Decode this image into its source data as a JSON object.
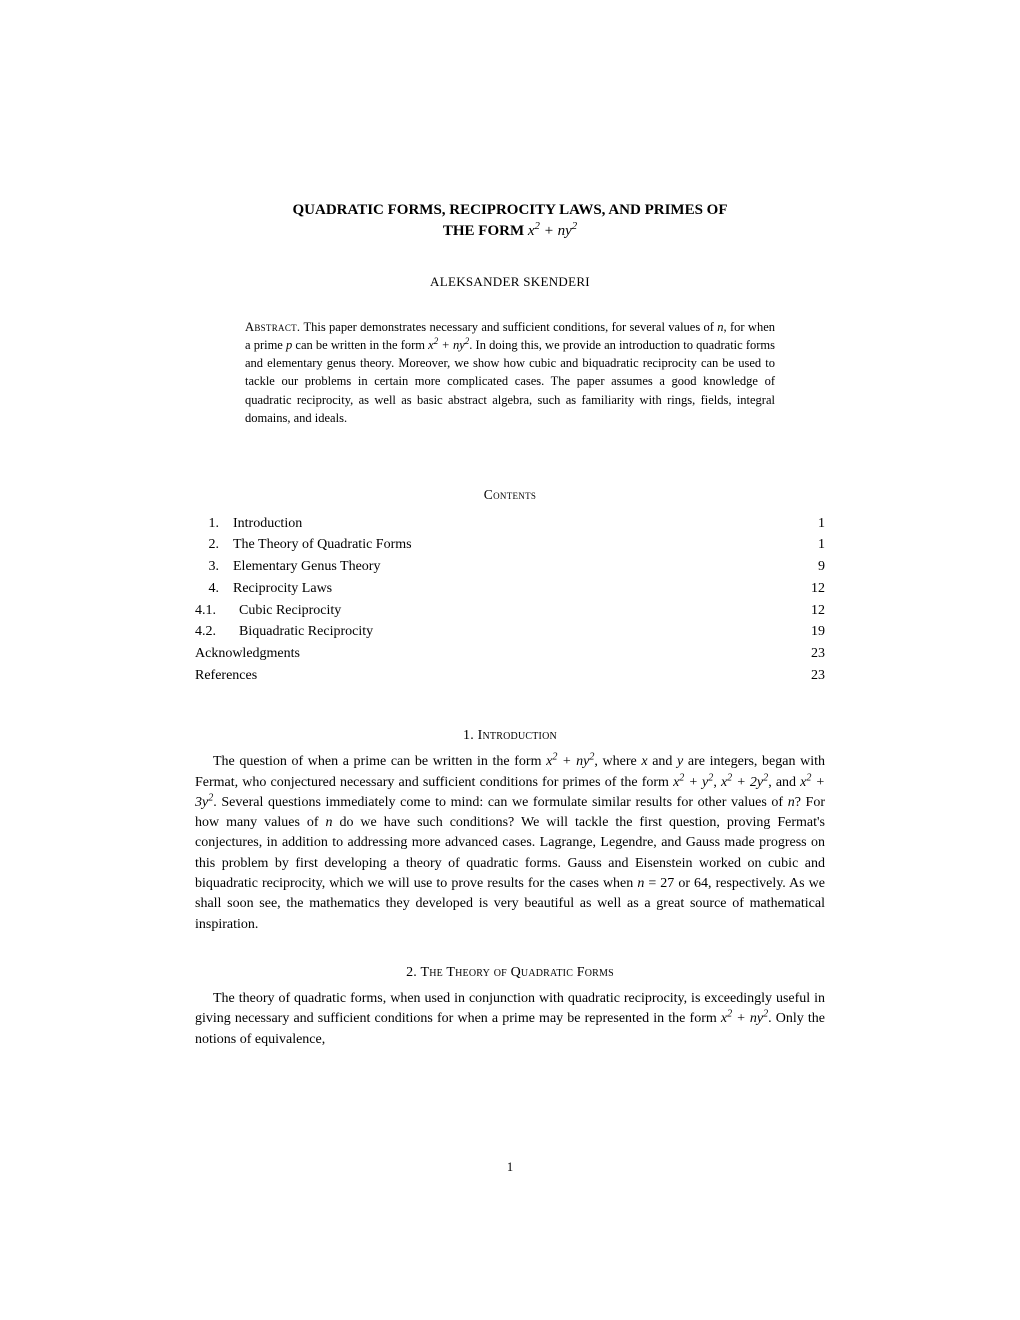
{
  "title_line1": "QUADRATIC FORMS, RECIPROCITY LAWS, AND PRIMES OF",
  "title_line2_prefix": "THE FORM ",
  "author": "ALEKSANDER SKENDERI",
  "abstract_label": "Abstract.",
  "abstract_body_1": " This paper demonstrates necessary and sufficient conditions, for several values of ",
  "abstract_body_2": ", for when a prime ",
  "abstract_body_3": " can be written in the form ",
  "abstract_body_4": ". In doing this, we provide an introduction to quadratic forms and elementary genus theory. Moreover, we show how cubic and biquadratic reciprocity can be used to tackle our problems in certain more complicated cases. The paper assumes a good knowledge of quadratic reciprocity, as well as basic abstract algebra, such as familiarity with rings, fields, integral domains, and ideals.",
  "contents_heading": "Contents",
  "toc": [
    {
      "num": "1.",
      "title": "Introduction",
      "page": "1"
    },
    {
      "num": "2.",
      "title": "The Theory of Quadratic Forms",
      "page": "1"
    },
    {
      "num": "3.",
      "title": "Elementary Genus Theory",
      "page": "9"
    },
    {
      "num": "4.",
      "title": "Reciprocity Laws",
      "page": "12"
    },
    {
      "num": "4.1.",
      "title": "Cubic Reciprocity",
      "page": "12",
      "sub": true
    },
    {
      "num": "4.2.",
      "title": "Biquadratic Reciprocity",
      "page": "19",
      "sub": true
    },
    {
      "num": "",
      "title": "Acknowledgments",
      "page": "23",
      "noprefix": true
    },
    {
      "num": "",
      "title": "References",
      "page": "23",
      "noprefix": true
    }
  ],
  "section1_heading": "1. Introduction",
  "intro_1": "The question of when a prime can be written in the form ",
  "intro_2": ", where ",
  "intro_3": " and ",
  "intro_4": " are integers, began with Fermat, who conjectured necessary and sufficient conditions for primes of the form ",
  "intro_5": ", ",
  "intro_6": ", and ",
  "intro_7": ". Several questions immediately come to mind: can we formulate similar results for other values of ",
  "intro_8": "? For how many values of ",
  "intro_9": " do we have such conditions? We will tackle the first question, proving Fermat's conjectures, in addition to addressing more advanced cases. Lagrange, Legendre, and Gauss made progress on this problem by first developing a theory of quadratic forms. Gauss and Eisenstein worked on cubic and biquadratic reciprocity, which we will use to prove results for the cases when ",
  "intro_10": " = 27 or 64, respectively. As we shall soon see, the mathematics they developed is very beautiful as well as a great source of mathematical inspiration.",
  "section2_heading": "2. The Theory of Quadratic Forms",
  "sec2_1": "The theory of quadratic forms, when used in conjunction with quadratic reciprocity, is exceedingly useful in giving necessary and sufficient conditions for when a prime may be represented in the form ",
  "sec2_2": ". Only the notions of equivalence,",
  "page_number": "1",
  "math": {
    "x": "x",
    "y": "y",
    "n": "n",
    "p": "p"
  }
}
